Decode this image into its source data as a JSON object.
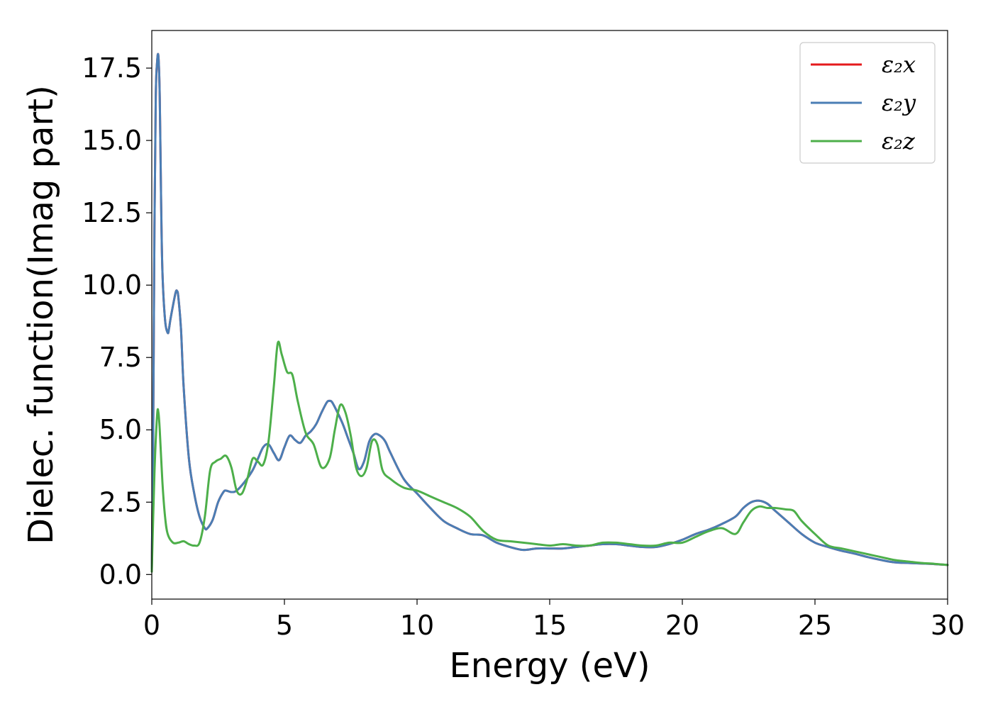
{
  "chart_data": {
    "type": "line",
    "title": "",
    "xlabel": "Energy (eV)",
    "ylabel": "Dielec. function(Imag part)",
    "xlim": [
      0,
      30
    ],
    "ylim": [
      -0.85,
      18.8
    ],
    "xticks": [
      "0",
      "5",
      "10",
      "15",
      "20",
      "25",
      "30"
    ],
    "yticks": [
      "0.0",
      "2.5",
      "5.0",
      "7.5",
      "10.0",
      "12.5",
      "15.0",
      "17.5"
    ],
    "grid": false,
    "legend_position": "top-right",
    "series": [
      {
        "name": "ε₂x",
        "color": "#e41a1c",
        "x": [
          0,
          0.05,
          0.1,
          0.15,
          0.2,
          0.25,
          0.3,
          0.35,
          0.4,
          0.5,
          0.6,
          0.65,
          0.7,
          0.8,
          0.9,
          0.95,
          1.0,
          1.1,
          1.2,
          1.4,
          1.6,
          1.8,
          2.0,
          2.1,
          2.3,
          2.5,
          2.7,
          2.8,
          3.0,
          3.2,
          3.5,
          3.8,
          4.0,
          4.2,
          4.4,
          4.6,
          4.8,
          5.0,
          5.2,
          5.4,
          5.6,
          5.8,
          6.0,
          6.2,
          6.4,
          6.6,
          6.7,
          6.8,
          7.0,
          7.2,
          7.4,
          7.6,
          7.8,
          8.0,
          8.2,
          8.4,
          8.6,
          8.8,
          9.0,
          9.5,
          10.0,
          10.5,
          11.0,
          11.5,
          12.0,
          12.5,
          13.0,
          13.5,
          14.0,
          14.5,
          15.0,
          15.5,
          16.0,
          16.5,
          17.0,
          17.5,
          18.0,
          18.5,
          19.0,
          19.5,
          20.0,
          20.5,
          21.0,
          21.5,
          22.0,
          22.3,
          22.6,
          22.9,
          23.2,
          23.5,
          24.0,
          24.5,
          25.0,
          25.5,
          26.0,
          26.5,
          27.0,
          27.5,
          28.0,
          28.5,
          29.0,
          29.5,
          30.0
        ],
        "y": [
          0.2,
          4.5,
          12.0,
          16.5,
          17.7,
          17.9,
          16.5,
          13.0,
          10.5,
          8.8,
          8.35,
          8.5,
          8.8,
          9.3,
          9.75,
          9.8,
          9.6,
          8.5,
          6.5,
          4.0,
          2.8,
          2.0,
          1.6,
          1.6,
          1.9,
          2.5,
          2.85,
          2.9,
          2.85,
          2.9,
          3.2,
          3.6,
          4.0,
          4.4,
          4.5,
          4.2,
          3.95,
          4.4,
          4.8,
          4.65,
          4.55,
          4.8,
          4.95,
          5.2,
          5.6,
          5.95,
          6.0,
          5.95,
          5.6,
          5.2,
          4.7,
          4.2,
          3.65,
          3.9,
          4.6,
          4.85,
          4.8,
          4.6,
          4.2,
          3.3,
          2.8,
          2.3,
          1.85,
          1.6,
          1.4,
          1.35,
          1.1,
          0.95,
          0.85,
          0.9,
          0.9,
          0.9,
          0.95,
          1.0,
          1.05,
          1.05,
          1.0,
          0.95,
          0.95,
          1.05,
          1.2,
          1.4,
          1.55,
          1.75,
          2.0,
          2.3,
          2.5,
          2.55,
          2.45,
          2.2,
          1.8,
          1.4,
          1.1,
          0.95,
          0.82,
          0.72,
          0.6,
          0.5,
          0.42,
          0.4,
          0.38,
          0.36,
          0.33
        ]
      },
      {
        "name": "ε₂y",
        "color": "#4a7eb5",
        "x": [
          0,
          0.05,
          0.1,
          0.15,
          0.2,
          0.25,
          0.3,
          0.35,
          0.4,
          0.5,
          0.6,
          0.65,
          0.7,
          0.8,
          0.9,
          0.95,
          1.0,
          1.1,
          1.2,
          1.4,
          1.6,
          1.8,
          2.0,
          2.1,
          2.3,
          2.5,
          2.7,
          2.8,
          3.0,
          3.2,
          3.5,
          3.8,
          4.0,
          4.2,
          4.4,
          4.6,
          4.8,
          5.0,
          5.2,
          5.4,
          5.6,
          5.8,
          6.0,
          6.2,
          6.4,
          6.6,
          6.7,
          6.8,
          7.0,
          7.2,
          7.4,
          7.6,
          7.8,
          8.0,
          8.2,
          8.4,
          8.6,
          8.8,
          9.0,
          9.5,
          10.0,
          10.5,
          11.0,
          11.5,
          12.0,
          12.5,
          13.0,
          13.5,
          14.0,
          14.5,
          15.0,
          15.5,
          16.0,
          16.5,
          17.0,
          17.5,
          18.0,
          18.5,
          19.0,
          19.5,
          20.0,
          20.5,
          21.0,
          21.5,
          22.0,
          22.3,
          22.6,
          22.9,
          23.2,
          23.5,
          24.0,
          24.5,
          25.0,
          25.5,
          26.0,
          26.5,
          27.0,
          27.5,
          28.0,
          28.5,
          29.0,
          29.5,
          30.0
        ],
        "y": [
          0.2,
          4.5,
          12.0,
          16.5,
          17.7,
          17.9,
          16.5,
          13.0,
          10.5,
          8.8,
          8.35,
          8.5,
          8.8,
          9.3,
          9.75,
          9.8,
          9.6,
          8.5,
          6.5,
          4.0,
          2.8,
          2.0,
          1.6,
          1.6,
          1.9,
          2.5,
          2.85,
          2.9,
          2.85,
          2.9,
          3.2,
          3.6,
          4.0,
          4.4,
          4.5,
          4.2,
          3.95,
          4.4,
          4.8,
          4.65,
          4.55,
          4.8,
          4.95,
          5.2,
          5.6,
          5.95,
          6.0,
          5.95,
          5.6,
          5.2,
          4.7,
          4.2,
          3.65,
          3.9,
          4.6,
          4.85,
          4.8,
          4.6,
          4.2,
          3.3,
          2.8,
          2.3,
          1.85,
          1.6,
          1.4,
          1.35,
          1.1,
          0.95,
          0.85,
          0.9,
          0.9,
          0.9,
          0.95,
          1.0,
          1.05,
          1.05,
          1.0,
          0.95,
          0.95,
          1.05,
          1.2,
          1.4,
          1.55,
          1.75,
          2.0,
          2.3,
          2.5,
          2.55,
          2.45,
          2.2,
          1.8,
          1.4,
          1.1,
          0.95,
          0.82,
          0.72,
          0.6,
          0.5,
          0.42,
          0.4,
          0.38,
          0.36,
          0.33
        ]
      },
      {
        "name": "ε₂z",
        "color": "#4daf4a",
        "x": [
          0,
          0.1,
          0.2,
          0.25,
          0.3,
          0.4,
          0.5,
          0.6,
          0.8,
          1.0,
          1.2,
          1.4,
          1.6,
          1.8,
          2.0,
          2.2,
          2.4,
          2.6,
          2.8,
          3.0,
          3.2,
          3.4,
          3.6,
          3.8,
          4.0,
          4.2,
          4.4,
          4.6,
          4.75,
          4.9,
          5.1,
          5.3,
          5.5,
          5.8,
          6.1,
          6.4,
          6.7,
          6.9,
          7.1,
          7.3,
          7.5,
          7.7,
          7.9,
          8.1,
          8.3,
          8.5,
          8.7,
          9.0,
          9.5,
          10.0,
          10.5,
          11.0,
          11.5,
          12.0,
          12.5,
          13.0,
          13.5,
          14.0,
          14.5,
          15.0,
          15.5,
          16.0,
          16.5,
          17.0,
          17.5,
          18.0,
          18.5,
          19.0,
          19.5,
          20.0,
          20.5,
          21.0,
          21.5,
          22.0,
          22.3,
          22.6,
          22.9,
          23.2,
          23.5,
          23.9,
          24.2,
          24.5,
          25.0,
          25.5,
          26.0,
          26.5,
          27.0,
          27.5,
          28.0,
          28.5,
          29.0,
          29.5,
          30.0
        ],
        "y": [
          0.1,
          3.5,
          5.5,
          5.6,
          5.0,
          3.2,
          2.0,
          1.4,
          1.1,
          1.1,
          1.15,
          1.05,
          1.0,
          1.1,
          2.0,
          3.6,
          3.9,
          4.0,
          4.1,
          3.7,
          2.9,
          2.8,
          3.3,
          4.0,
          3.9,
          3.8,
          4.6,
          6.5,
          8.0,
          7.6,
          7.0,
          6.9,
          6.0,
          4.9,
          4.5,
          3.7,
          4.0,
          5.0,
          5.85,
          5.6,
          4.8,
          3.7,
          3.4,
          3.7,
          4.6,
          4.5,
          3.6,
          3.3,
          3.0,
          2.9,
          2.7,
          2.5,
          2.3,
          2.0,
          1.5,
          1.2,
          1.15,
          1.1,
          1.05,
          1.0,
          1.05,
          1.0,
          1.0,
          1.1,
          1.1,
          1.05,
          1.0,
          1.0,
          1.1,
          1.1,
          1.3,
          1.5,
          1.6,
          1.4,
          1.8,
          2.2,
          2.35,
          2.3,
          2.3,
          2.25,
          2.2,
          1.85,
          1.4,
          1.0,
          0.9,
          0.8,
          0.7,
          0.6,
          0.5,
          0.45,
          0.4,
          0.37,
          0.33
        ]
      }
    ]
  }
}
